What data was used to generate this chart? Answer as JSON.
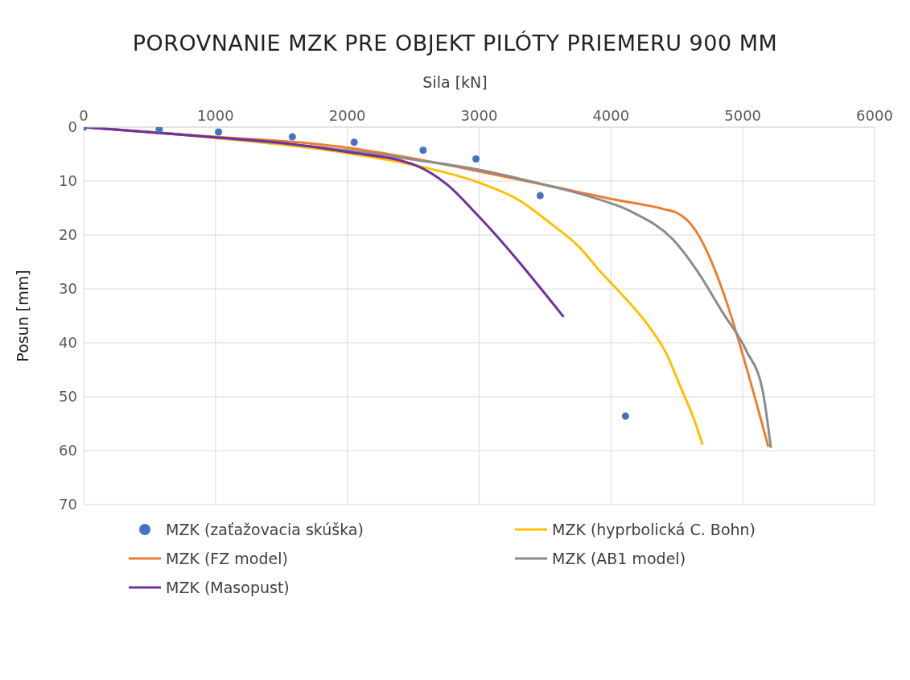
{
  "chart_data": {
    "type": "line",
    "title": "POROVNANIE MZK PRE OBJEKT PILÓTY PRIEMERU 900 MM",
    "xlabel": "Sila [kN]",
    "ylabel": "Posun [mm]",
    "xlim": [
      0,
      6000
    ],
    "xticks": [
      0,
      1000,
      2000,
      3000,
      4000,
      5000,
      6000
    ],
    "ylim": [
      70,
      0
    ],
    "yticks": [
      0,
      10,
      20,
      30,
      40,
      50,
      60,
      70
    ],
    "grid": true,
    "legend": "bottom",
    "series": [
      {
        "name": "MZK (zaťažovacia skúška)",
        "type": "scatter",
        "marker": "circle",
        "color": "#4472c4",
        "x": [
          0,
          573,
          1023,
          1583,
          2052,
          2575,
          2976,
          3463,
          4110
        ],
        "values": [
          0,
          0.4,
          0.9,
          1.8,
          2.8,
          4.3,
          5.9,
          12.7,
          53.6
        ]
      },
      {
        "name": "MZK (hyprbolická C. Bohn)",
        "color": "#ffc000",
        "x": [
          0,
          1000,
          2000,
          2500,
          3000,
          3300,
          3550,
          3750,
          3920,
          4100,
          4290,
          4420,
          4540,
          4620,
          4695
        ],
        "values": [
          0,
          2,
          4.8,
          7,
          10.3,
          13.5,
          18,
          22,
          26.8,
          31.5,
          37,
          42,
          48.9,
          53.5,
          58.9
        ]
      },
      {
        "name": "MZK (FZ model)",
        "color": "#ed7d31",
        "x": [
          0,
          1000,
          1750,
          2000,
          2500,
          3000,
          3500,
          4000,
          4400,
          4500,
          4572,
          5194
        ],
        "values": [
          0,
          1.8,
          3.1,
          3.8,
          5.8,
          8.2,
          10.7,
          13.3,
          15.2,
          15.9,
          17.1,
          59.3
        ]
      },
      {
        "name": "MZK (AB1 model)",
        "color": "#8c8c8c",
        "x": [
          0,
          1000,
          2000,
          2500,
          3000,
          3500,
          3800,
          4165,
          4473,
          4658,
          4843,
          5028,
          5151,
          5213
        ],
        "values": [
          0,
          1.9,
          4.3,
          6,
          7.9,
          10.7,
          12.6,
          15.8,
          20.9,
          26.8,
          34.2,
          41.5,
          48.9,
          59.5
        ]
      },
      {
        "name": "MZK (Masopust)",
        "color": "#7030a0",
        "x": [
          0,
          1000,
          1500,
          2000,
          2520,
          2750,
          2995,
          3641
        ],
        "values": [
          0,
          1.9,
          2.9,
          4.6,
          7.1,
          10.5,
          16.5,
          35.2
        ]
      }
    ]
  }
}
